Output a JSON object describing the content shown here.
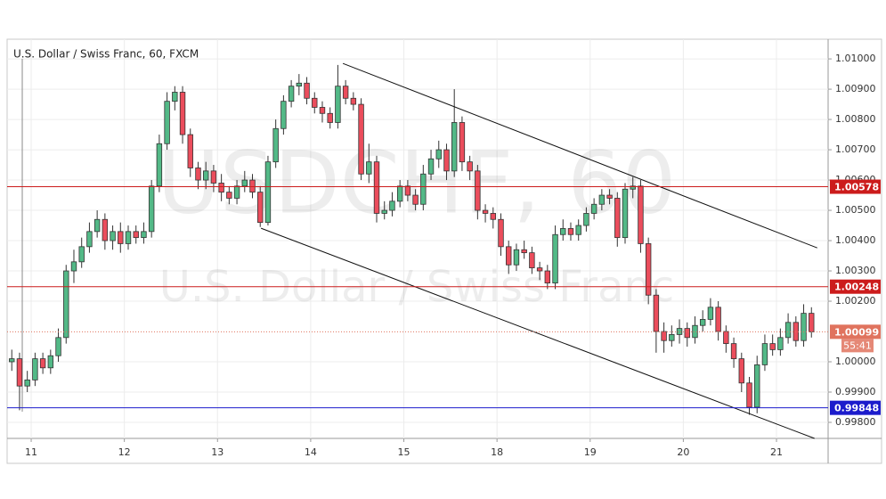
{
  "chart_data": {
    "type": "candlestick",
    "title": "U.S. Dollar / Swiss Franc, 60, FXCM",
    "watermark": {
      "symbol": "USDCHF, 60",
      "description": "U.S. Dollar / Swiss Franc"
    },
    "up_color": "#53b987",
    "down_color": "#eb4d5c",
    "x": [
      -5,
      -3,
      -1,
      1,
      3,
      5,
      7,
      9,
      11,
      13,
      15,
      17,
      19,
      21,
      23,
      25,
      27,
      29,
      31,
      33,
      35,
      37,
      39,
      41,
      43,
      45,
      47,
      49,
      51,
      53,
      55,
      57,
      59,
      61,
      63,
      65,
      67,
      69,
      71,
      73,
      75,
      77,
      79,
      81,
      83,
      85,
      87,
      89,
      91,
      93,
      95,
      97,
      99,
      101,
      103,
      105,
      107,
      109,
      111,
      113,
      115,
      117,
      119,
      121,
      123,
      125,
      127,
      129,
      131,
      133,
      135,
      137,
      139,
      141,
      143,
      145,
      147,
      149,
      151,
      153,
      155,
      157,
      159,
      161,
      163,
      165,
      167,
      169,
      171,
      173,
      175,
      177,
      179,
      181,
      183,
      185,
      187,
      189,
      191,
      193,
      195,
      197,
      199,
      201
    ],
    "open": [
      1.0,
      1.0001,
      0.9992,
      0.9994,
      1.0001,
      0.9998,
      1.0002,
      1.0008,
      1.003,
      1.0033,
      1.0038,
      1.0043,
      1.0047,
      1.004,
      1.0043,
      1.0039,
      1.0043,
      1.0041,
      1.0043,
      1.0058,
      1.0072,
      1.0086,
      1.0089,
      1.0075,
      1.0064,
      1.006,
      1.0063,
      1.0059,
      1.0056,
      1.0054,
      1.0058,
      1.006,
      1.0056,
      1.0046,
      1.0066,
      1.0077,
      1.0086,
      1.0091,
      1.0092,
      1.0087,
      1.0084,
      1.0082,
      1.0079,
      1.0091,
      1.0087,
      1.0085,
      1.0062,
      1.0066,
      1.0049,
      1.005,
      1.0053,
      1.0058,
      1.0055,
      1.0052,
      1.0062,
      1.0067,
      1.007,
      1.0063,
      1.0079,
      1.0066,
      1.0063,
      1.005,
      1.0049,
      1.0047,
      1.0038,
      1.0032,
      1.0037,
      1.0036,
      1.0031,
      1.003,
      1.0026,
      1.0042,
      1.0044,
      1.0042,
      1.0045,
      1.0049,
      1.0052,
      1.0055,
      1.0054,
      1.0041,
      1.0057,
      1.0058,
      1.0039,
      1.0022,
      1.001,
      1.0007,
      1.0009,
      1.0011,
      1.0008,
      1.0012,
      1.0014,
      1.0018,
      1.001,
      1.0006,
      1.0001,
      0.9993,
      0.9985,
      0.9999,
      1.0006,
      1.0004,
      1.0008,
      1.0013,
      1.0007,
      1.0016
    ],
    "high": [
      1.0004,
      1.0003,
      0.9997,
      1.0003,
      1.0003,
      1.0004,
      1.0011,
      1.0032,
      1.0037,
      1.0041,
      1.0046,
      1.005,
      1.0049,
      1.0045,
      1.0046,
      1.0045,
      1.0045,
      1.0046,
      1.006,
      1.0075,
      1.0089,
      1.0091,
      1.0091,
      1.0077,
      1.0066,
      1.0066,
      1.0065,
      1.0062,
      1.0058,
      1.006,
      1.0063,
      1.0062,
      1.0058,
      1.0068,
      1.008,
      1.0088,
      1.0093,
      1.0095,
      1.0094,
      1.0089,
      1.0086,
      1.0084,
      1.0098,
      1.0093,
      1.0089,
      1.0087,
      1.0072,
      1.0068,
      1.0053,
      1.0056,
      1.006,
      1.006,
      1.0057,
      1.0065,
      1.007,
      1.0073,
      1.0072,
      1.009,
      1.0081,
      1.0068,
      1.0065,
      1.0052,
      1.0051,
      1.0049,
      1.004,
      1.0039,
      1.004,
      1.0038,
      1.0033,
      1.0032,
      1.0045,
      1.0047,
      1.0046,
      1.0047,
      1.0051,
      1.0054,
      1.0057,
      1.0057,
      1.0056,
      1.0059,
      1.0061,
      1.006,
      1.0041,
      1.0024,
      1.0013,
      1.0012,
      1.0014,
      1.0013,
      1.0015,
      1.0017,
      1.0021,
      1.002,
      1.0012,
      1.0008,
      1.0003,
      0.9995,
      1.0002,
      1.0009,
      1.0009,
      1.0011,
      1.0016,
      1.0015,
      1.0019,
      1.0018
    ],
    "low": [
      0.9997,
      0.9984,
      0.999,
      0.9992,
      0.9996,
      0.9996,
      1.0,
      1.0006,
      1.0026,
      1.0031,
      1.0036,
      1.0041,
      1.0037,
      1.0037,
      1.0036,
      1.0037,
      1.0039,
      1.0039,
      1.0041,
      1.0056,
      1.007,
      1.0083,
      1.0072,
      1.0061,
      1.0057,
      1.0057,
      1.0056,
      1.0053,
      1.0052,
      1.0052,
      1.0056,
      1.0054,
      1.00445,
      1.0045,
      1.0064,
      1.0075,
      1.0084,
      1.0088,
      1.0085,
      1.0082,
      1.0079,
      1.0077,
      1.0077,
      1.0085,
      1.0083,
      1.006,
      1.0059,
      1.0046,
      1.0047,
      1.0048,
      1.0051,
      1.0053,
      1.005,
      1.005,
      1.006,
      1.0064,
      1.006,
      1.0061,
      1.0063,
      1.006,
      1.0047,
      1.0046,
      1.0044,
      1.0035,
      1.0029,
      1.003,
      1.0034,
      1.0029,
      1.0027,
      1.0024,
      1.0024,
      1.004,
      1.004,
      1.004,
      1.0043,
      1.0047,
      1.005,
      1.0052,
      1.0038,
      1.0039,
      1.0054,
      1.0036,
      1.0019,
      1.0003,
      1.0003,
      1.0005,
      1.0006,
      1.0005,
      1.0006,
      1.001,
      1.0012,
      1.0007,
      1.0003,
      0.9998,
      0.999,
      0.99825,
      0.9983,
      0.9997,
      1.0002,
      1.0002,
      1.0006,
      1.0005,
      1.0005,
      1.0008
    ],
    "close": [
      1.0001,
      0.9992,
      0.9994,
      1.0001,
      0.9998,
      1.0002,
      1.0008,
      1.003,
      1.0033,
      1.0038,
      1.0043,
      1.0047,
      1.004,
      1.0043,
      1.0039,
      1.0043,
      1.0041,
      1.0043,
      1.0058,
      1.0072,
      1.0086,
      1.0089,
      1.0075,
      1.0064,
      1.006,
      1.0063,
      1.0059,
      1.0056,
      1.0054,
      1.0058,
      1.006,
      1.0056,
      1.0046,
      1.0066,
      1.0077,
      1.0086,
      1.0091,
      1.0092,
      1.0087,
      1.0084,
      1.0082,
      1.0079,
      1.0091,
      1.0087,
      1.0085,
      1.0062,
      1.0066,
      1.0049,
      1.005,
      1.0053,
      1.0058,
      1.0055,
      1.0052,
      1.0062,
      1.0067,
      1.007,
      1.0063,
      1.0079,
      1.0066,
      1.0063,
      1.005,
      1.0049,
      1.0047,
      1.0038,
      1.0032,
      1.0037,
      1.0036,
      1.0031,
      1.003,
      1.0026,
      1.0042,
      1.0044,
      1.0042,
      1.0045,
      1.0049,
      1.0052,
      1.0055,
      1.0054,
      1.0041,
      1.0057,
      1.0058,
      1.0039,
      1.0022,
      1.001,
      1.0007,
      1.0009,
      1.0011,
      1.0008,
      1.0012,
      1.0014,
      1.0018,
      1.001,
      1.0006,
      1.0001,
      0.9993,
      0.9985,
      0.9999,
      1.0006,
      1.0004,
      1.0008,
      1.0013,
      1.0007,
      1.0016,
      1.00099
    ],
    "xlim": [
      -6.2,
      205.3
    ],
    "ylim": [
      0.99747,
      1.01065
    ],
    "xticks": [
      {
        "value": 0,
        "label": "11"
      },
      {
        "value": 24,
        "label": "12"
      },
      {
        "value": 48,
        "label": "13"
      },
      {
        "value": 72,
        "label": "14"
      },
      {
        "value": 96,
        "label": "15"
      },
      {
        "value": 120,
        "label": "18"
      },
      {
        "value": 144,
        "label": "19"
      },
      {
        "value": 168,
        "label": "20"
      },
      {
        "value": 192,
        "label": "21"
      }
    ],
    "yticks": [
      {
        "value": 1.01,
        "label": "1.01000"
      },
      {
        "value": 1.009,
        "label": "1.00900"
      },
      {
        "value": 1.008,
        "label": "1.00800"
      },
      {
        "value": 1.007,
        "label": "1.00700"
      },
      {
        "value": 1.006,
        "label": "1.00600"
      },
      {
        "value": 1.005,
        "label": "1.00500"
      },
      {
        "value": 1.004,
        "label": "1.00400"
      },
      {
        "value": 1.003,
        "label": "1.00300"
      },
      {
        "value": 1.002,
        "label": "1.00200"
      },
      {
        "value": 1,
        "label": "1.00000"
      },
      {
        "value": 0.999,
        "label": "0.99900"
      },
      {
        "value": 0.998,
        "label": "0.99800"
      }
    ],
    "grid": true,
    "levels": [
      {
        "value": 1.00578,
        "color": "#cc1c1c"
      },
      {
        "value": 1.00248,
        "color": "#cc1c1c"
      },
      {
        "value": 0.99848,
        "color": "#1c1ccc"
      }
    ],
    "last": {
      "value": 1.00099,
      "countdown": "55:41",
      "color": "#e0735e"
    },
    "trendlines": [
      {
        "x": [
          80.3,
          202.5
        ],
        "y": [
          1.00985,
          1.00376
        ]
      },
      {
        "x": [
          59.2,
          201.8
        ],
        "y": [
          1.00441,
          0.99747
        ]
      }
    ]
  }
}
